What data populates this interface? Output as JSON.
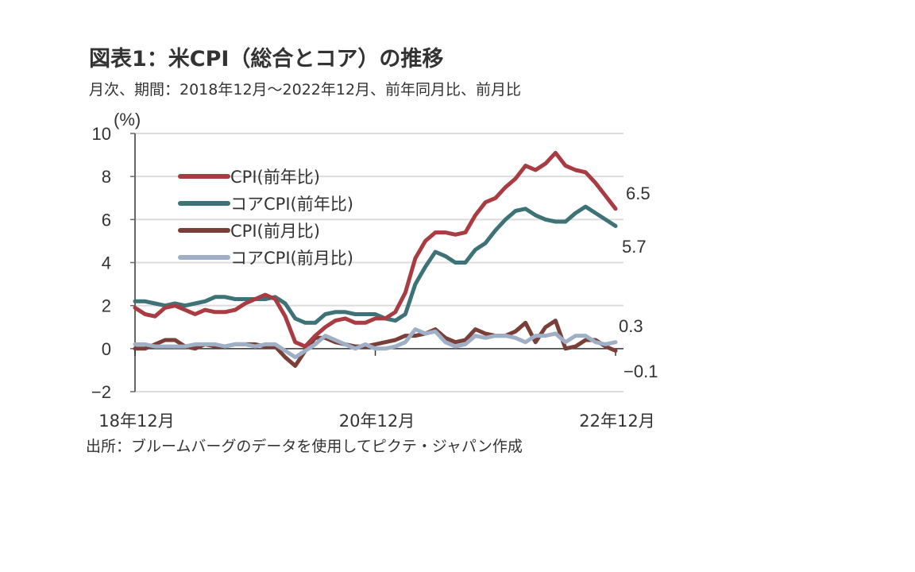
{
  "title": "図表1：米CPI（総合とコア）の推移",
  "subtitle": "月次、期間：2018年12月～2022年12月、前年同月比、前月比",
  "source": "出所：ブルームバーグのデータを使用してピクテ・ジャパン作成",
  "chart_data": {
    "type": "line",
    "ylabel": "(%)",
    "ylim": [
      -2,
      10
    ],
    "yticks": [
      "10",
      "8",
      "6",
      "4",
      "2",
      "0",
      "−2"
    ],
    "ytick_values": [
      10,
      8,
      6,
      4,
      2,
      0,
      -2
    ],
    "xtick_labels": [
      "18年12月",
      "20年12月",
      "22年12月"
    ],
    "x_start": "2018-12",
    "x_end": "2022-12",
    "grid": true,
    "legend_position": "top-left",
    "series": [
      {
        "name": "CPI(前年比)",
        "color": "#a83c42",
        "end_label": "6.5",
        "values": [
          1.9,
          1.6,
          1.5,
          1.9,
          2.0,
          1.8,
          1.6,
          1.8,
          1.7,
          1.7,
          1.8,
          2.1,
          2.3,
          2.5,
          2.3,
          1.5,
          0.3,
          0.1,
          0.6,
          1.0,
          1.3,
          1.4,
          1.2,
          1.2,
          1.4,
          1.4,
          1.7,
          2.6,
          4.2,
          5.0,
          5.4,
          5.4,
          5.3,
          5.4,
          6.2,
          6.8,
          7.0,
          7.5,
          7.9,
          8.5,
          8.3,
          8.6,
          9.1,
          8.5,
          8.3,
          8.2,
          7.7,
          7.1,
          6.5
        ]
      },
      {
        "name": "コアCPI(前年比)",
        "color": "#3d7276",
        "end_label": "5.7",
        "values": [
          2.2,
          2.2,
          2.1,
          2.0,
          2.1,
          2.0,
          2.1,
          2.2,
          2.4,
          2.4,
          2.3,
          2.3,
          2.3,
          2.3,
          2.4,
          2.1,
          1.4,
          1.2,
          1.2,
          1.6,
          1.7,
          1.7,
          1.6,
          1.6,
          1.6,
          1.4,
          1.3,
          1.6,
          3.0,
          3.8,
          4.5,
          4.3,
          4.0,
          4.0,
          4.6,
          4.9,
          5.5,
          6.0,
          6.4,
          6.5,
          6.2,
          6.0,
          5.9,
          5.9,
          6.3,
          6.6,
          6.3,
          6.0,
          5.7
        ]
      },
      {
        "name": "CPI(前月比)",
        "color": "#7a3f38",
        "end_label": "−0.1",
        "values": [
          0.0,
          0.0,
          0.2,
          0.4,
          0.4,
          0.1,
          0.0,
          0.2,
          0.1,
          0.1,
          0.2,
          0.2,
          0.2,
          0.1,
          0.1,
          -0.4,
          -0.8,
          -0.1,
          0.5,
          0.5,
          0.3,
          0.2,
          0.1,
          0.1,
          0.2,
          0.3,
          0.4,
          0.6,
          0.6,
          0.7,
          0.9,
          0.5,
          0.3,
          0.4,
          0.9,
          0.7,
          0.6,
          0.6,
          0.8,
          1.2,
          0.3,
          1.0,
          1.3,
          0.0,
          0.1,
          0.4,
          0.4,
          0.1,
          -0.1
        ]
      },
      {
        "name": "コアCPI(前月比)",
        "color": "#9fb0c6",
        "end_label": "0.3",
        "values": [
          0.2,
          0.2,
          0.1,
          0.1,
          0.1,
          0.1,
          0.2,
          0.2,
          0.2,
          0.1,
          0.2,
          0.2,
          0.1,
          0.2,
          0.2,
          -0.1,
          -0.4,
          -0.1,
          0.2,
          0.6,
          0.4,
          0.2,
          0.0,
          0.2,
          0.0,
          0.0,
          0.1,
          0.3,
          0.9,
          0.7,
          0.8,
          0.3,
          0.1,
          0.2,
          0.6,
          0.5,
          0.6,
          0.6,
          0.5,
          0.3,
          0.6,
          0.6,
          0.7,
          0.3,
          0.6,
          0.6,
          0.3,
          0.2,
          0.3
        ]
      }
    ]
  }
}
